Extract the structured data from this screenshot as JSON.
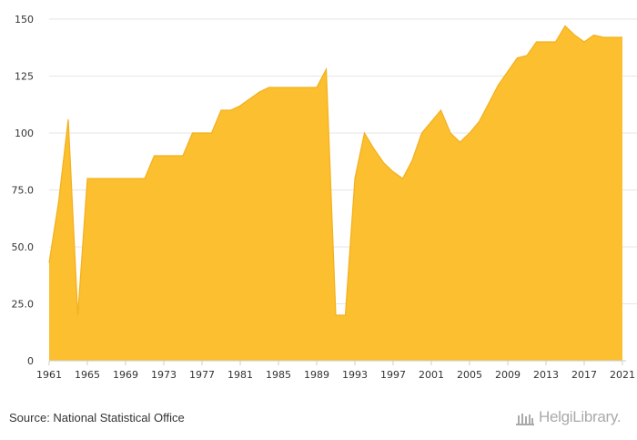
{
  "source_text": "Source: National Statistical Office",
  "logo": {
    "text": "HelgiLibrary."
  },
  "colors": {
    "area": "#FBBF2F",
    "line": "#F4B01B",
    "grid": "#e6e6e6",
    "text": "#333333",
    "logo": "#aaaaaa"
  },
  "chart_data": {
    "type": "area",
    "title": "",
    "xlabel": "",
    "ylabel": "",
    "ylim": [
      0,
      150
    ],
    "yticks": [
      "0",
      "25.0",
      "50.0",
      "75.0",
      "100",
      "125",
      "150"
    ],
    "xticks": [
      "1961",
      "1965",
      "1969",
      "1973",
      "1977",
      "1981",
      "1985",
      "1989",
      "1993",
      "1997",
      "2001",
      "2005",
      "2009",
      "2013",
      "2017",
      "2021"
    ],
    "grid": true,
    "legend": "none",
    "x": [
      1961,
      1962,
      1963,
      1964,
      1965,
      1966,
      1967,
      1968,
      1969,
      1970,
      1971,
      1972,
      1973,
      1974,
      1975,
      1976,
      1977,
      1978,
      1979,
      1980,
      1981,
      1982,
      1983,
      1984,
      1985,
      1986,
      1987,
      1988,
      1989,
      1990,
      1991,
      1992,
      1993,
      1994,
      1995,
      1996,
      1997,
      1998,
      1999,
      2000,
      2001,
      2002,
      2003,
      2004,
      2005,
      2006,
      2007,
      2008,
      2009,
      2010,
      2011,
      2012,
      2013,
      2014,
      2015,
      2016,
      2017,
      2018,
      2019,
      2020,
      2021
    ],
    "values": [
      43,
      70,
      106,
      20,
      80,
      80,
      80,
      80,
      80,
      80,
      80,
      90,
      90,
      90,
      90,
      100,
      100,
      100,
      110,
      110,
      112,
      115,
      118,
      120,
      120,
      120,
      120,
      120,
      120,
      128,
      20,
      20,
      80,
      100,
      93,
      87,
      83,
      80,
      88,
      100,
      105,
      110,
      100,
      96,
      100,
      105,
      113,
      121,
      127,
      133,
      134,
      140,
      140,
      140,
      147,
      143,
      140,
      143,
      142,
      142,
      142
    ]
  }
}
